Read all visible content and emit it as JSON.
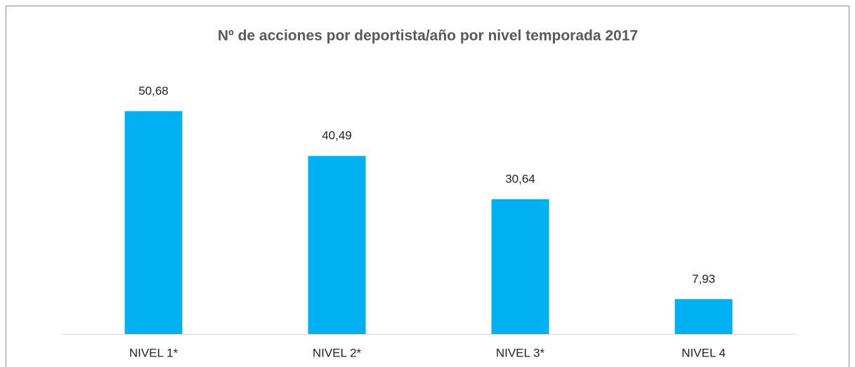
{
  "chart_data": {
    "type": "bar",
    "title": "Nº de acciones por deportista/año por nivel temporada 2017",
    "categories": [
      "NIVEL 1*",
      "NIVEL 2*",
      "NIVEL 3*",
      "NIVEL 4"
    ],
    "values": [
      50.68,
      40.49,
      30.64,
      7.93
    ],
    "value_labels": [
      "50,68",
      "40,49",
      "30,64",
      "7,93"
    ],
    "color": "#00b0f0",
    "ylim": [
      0,
      60
    ]
  }
}
